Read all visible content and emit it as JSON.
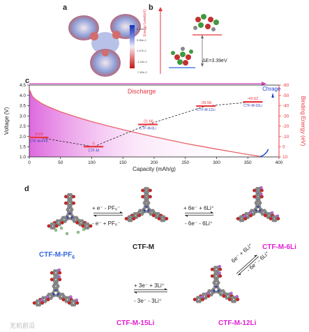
{
  "panels": {
    "a": {
      "label": "a",
      "colorbar_ticks": [
        "6.45e-2",
        "3.96e-2",
        "1.47e-2",
        "-1.02e-2",
        "-7.82e-2"
      ]
    },
    "b": {
      "label": "b",
      "ylabel": "Energy Level(eV)",
      "gap_text": "ΔE=3.39eV"
    },
    "c": {
      "label": "c",
      "discharge_label": "Discharge",
      "charge_label": "Chrage"
    },
    "d": {
      "label": "d"
    }
  },
  "chart_data": {
    "type": "line",
    "xlabel": "Capacity (mAh/g)",
    "ylabel": "Voltage (V)",
    "y2label": "Binding Energy (eV)",
    "xlim": [
      0,
      400
    ],
    "ylim": [
      1.0,
      4.5
    ],
    "y2lim": [
      10,
      -60
    ],
    "xticks": [
      0,
      50,
      100,
      150,
      200,
      250,
      300,
      350,
      400
    ],
    "yticks": [
      1.0,
      1.5,
      2.0,
      2.5,
      3.0,
      3.5,
      4.0,
      4.5
    ],
    "y2ticks": [
      10,
      0,
      -10,
      -20,
      -30,
      -40,
      -50,
      -60
    ],
    "series": [
      {
        "name": "Discharge",
        "color": "#e8636b",
        "x": [
          0,
          5,
          10,
          20,
          30,
          50,
          75,
          100,
          125,
          150,
          175,
          200,
          225,
          250,
          275,
          300,
          325,
          350,
          365,
          370
        ],
        "y": [
          4.3,
          3.95,
          3.8,
          3.6,
          3.45,
          3.2,
          2.95,
          2.72,
          2.52,
          2.33,
          2.15,
          1.98,
          1.82,
          1.66,
          1.52,
          1.38,
          1.25,
          1.12,
          1.05,
          1.02
        ]
      },
      {
        "name": "Chrage",
        "color": "#1a3ccc",
        "x": [
          370,
          375,
          380,
          383
        ],
        "y": [
          1.02,
          1.08,
          1.22,
          1.38
        ]
      }
    ],
    "energy_levels": [
      {
        "name": "CTF-M-PF6",
        "x": 15,
        "value": -8.99,
        "label": "-8.99"
      },
      {
        "name": "CTF-M",
        "x": 103,
        "value": 0,
        "label": "0"
      },
      {
        "name": "CTF-M-6Li",
        "x": 190,
        "value": -21.66,
        "label": "-21.66"
      },
      {
        "name": "CTF-M-12Li",
        "x": 283,
        "value": -39.58,
        "label": "-39.58"
      },
      {
        "name": "CTF-M-15Li",
        "x": 358,
        "value": -43.62,
        "label": "-43.62"
      }
    ]
  },
  "structures": {
    "pf6": "CTF-M-PF",
    "pf6_sub": "6",
    "ctfm": "CTF-M",
    "li6": "CTF-M-6Li",
    "li15": "CTF-M-15Li",
    "li12": "CTF-M-12Li"
  },
  "reactions": {
    "r1_top": "+ e⁻ - PF₆⁻",
    "r1_bot": "- e⁻ + PF₆⁻",
    "r2_top": "+ 6e⁻ + 6Li⁺",
    "r2_bot": "- 6e⁻ - 6Li⁺",
    "r3_top": "6e⁻ + 6Li⁺",
    "r3_bot": "- 6e⁻ - 6Li⁺",
    "r4_top": "+ 3e⁻ + 3Li⁺",
    "r4_bot": "- 3e⁻ - 3Li⁺"
  },
  "watermark": "无机前沿",
  "colors": {
    "accent_red": "#e8353c",
    "accent_blue": "#3366dd",
    "magenta": "#e020d0",
    "charge_blue": "#1a3ccc"
  }
}
